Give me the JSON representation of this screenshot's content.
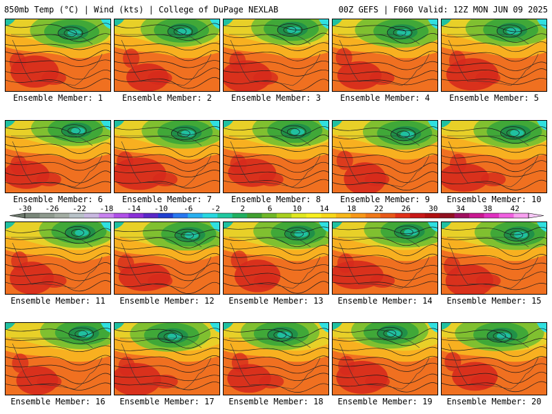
{
  "header": {
    "title_left": "850mb Temp (°C) | Wind (kts) | College of DuPage NEXLAB",
    "title_right": "00Z GEFS | F060 Valid: 12Z MON JUN 09 2025"
  },
  "members": [
    {
      "label": "Ensemble Member: 1"
    },
    {
      "label": "Ensemble Member: 2"
    },
    {
      "label": "Ensemble Member: 3"
    },
    {
      "label": "Ensemble Member: 4"
    },
    {
      "label": "Ensemble Member: 5"
    },
    {
      "label": "Ensemble Member: 6"
    },
    {
      "label": "Ensemble Member: 7"
    },
    {
      "label": "Ensemble Member: 8"
    },
    {
      "label": "Ensemble Member: 9"
    },
    {
      "label": "Ensemble Member: 10"
    },
    {
      "label": "Ensemble Member: 11"
    },
    {
      "label": "Ensemble Member: 12"
    },
    {
      "label": "Ensemble Member: 13"
    },
    {
      "label": "Ensemble Member: 14"
    },
    {
      "label": "Ensemble Member: 15"
    },
    {
      "label": "Ensemble Member: 16"
    },
    {
      "label": "Ensemble Member: 17"
    },
    {
      "label": "Ensemble Member: 18"
    },
    {
      "label": "Ensemble Member: 19"
    },
    {
      "label": "Ensemble Member: 20"
    }
  ],
  "colorbar": {
    "ticks": [
      "-30",
      "-26",
      "-22",
      "-18",
      "-14",
      "-10",
      "-6",
      "-2",
      "2",
      "6",
      "10",
      "14",
      "18",
      "22",
      "26",
      "30",
      "34",
      "38",
      "42"
    ],
    "colors": [
      "#7a877a",
      "#8e9a8e",
      "#a3ada3",
      "#b8c2c8",
      "#c8b8e0",
      "#c882f0",
      "#b050e8",
      "#8a30d8",
      "#5a28c8",
      "#2040d0",
      "#2878f0",
      "#28b0f0",
      "#28d8e0",
      "#20c8a0",
      "#20b060",
      "#40a030",
      "#70b828",
      "#a8d020",
      "#e0e820",
      "#f8f020",
      "#f8d818",
      "#f8b818",
      "#f89818",
      "#f07818",
      "#e85818",
      "#e03018",
      "#c81818",
      "#b01010",
      "#901020",
      "#a01060",
      "#c81890",
      "#e030c0",
      "#f060e0",
      "#f8a0f0"
    ],
    "left_arrow_color": "#6c786c",
    "right_arrow_color": "#f8c8f8"
  },
  "map_colors": {
    "hot": "#d62a1c",
    "warm": "#f07020",
    "mild": "#f8b020",
    "cool_yellow": "#e8d028",
    "green_light": "#80c030",
    "green_mid": "#40a838",
    "green_dark": "#209048",
    "teal": "#20c0a0",
    "cyan": "#30e0e0"
  }
}
